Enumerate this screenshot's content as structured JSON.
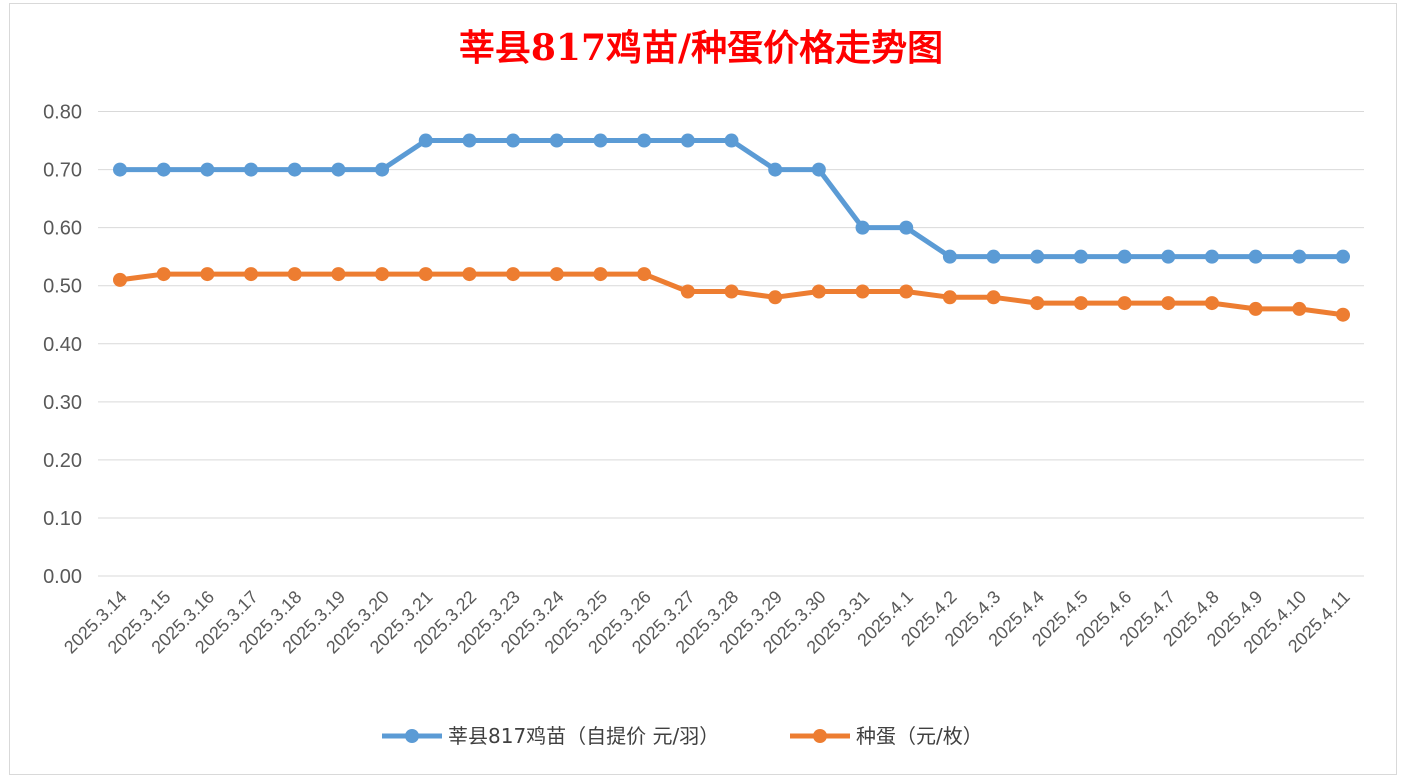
{
  "chart_data": {
    "type": "line",
    "title": "莘县817鸡苗/种蛋价格走势图",
    "title_color": "#ff0000",
    "xlabel": "",
    "ylabel": "",
    "categories": [
      "2025.3.14",
      "2025.3.15",
      "2025.3.16",
      "2025.3.17",
      "2025.3.18",
      "2025.3.19",
      "2025.3.20",
      "2025.3.21",
      "2025.3.22",
      "2025.3.23",
      "2025.3.24",
      "2025.3.25",
      "2025.3.26",
      "2025.3.27",
      "2025.3.28",
      "2025.3.29",
      "2025.3.30",
      "2025.3.31",
      "2025.4.1",
      "2025.4.2",
      "2025.4.3",
      "2025.4.4",
      "2025.4.5",
      "2025.4.6",
      "2025.4.7",
      "2025.4.8",
      "2025.4.9",
      "2025.4.10",
      "2025.4.11"
    ],
    "ylim": [
      0,
      0.8
    ],
    "yticks": [
      "0.00",
      "0.10",
      "0.20",
      "0.30",
      "0.40",
      "0.50",
      "0.60",
      "0.70",
      "0.80"
    ],
    "grid": true,
    "legend_position": "bottom",
    "series": [
      {
        "name": "莘县817鸡苗（自提价 元/羽）",
        "color": "#5b9bd5",
        "values": [
          0.7,
          0.7,
          0.7,
          0.7,
          0.7,
          0.7,
          0.7,
          0.75,
          0.75,
          0.75,
          0.75,
          0.75,
          0.75,
          0.75,
          0.75,
          0.7,
          0.7,
          0.6,
          0.6,
          0.55,
          0.55,
          0.55,
          0.55,
          0.55,
          0.55,
          0.55,
          0.55,
          0.55,
          0.55
        ]
      },
      {
        "name": "种蛋（元/枚）",
        "color": "#ed7d31",
        "values": [
          0.51,
          0.52,
          0.52,
          0.52,
          0.52,
          0.52,
          0.52,
          0.52,
          0.52,
          0.52,
          0.52,
          0.52,
          0.52,
          0.49,
          0.49,
          0.48,
          0.49,
          0.49,
          0.49,
          0.48,
          0.48,
          0.47,
          0.47,
          0.47,
          0.47,
          0.47,
          0.46,
          0.46,
          0.45
        ]
      }
    ]
  }
}
